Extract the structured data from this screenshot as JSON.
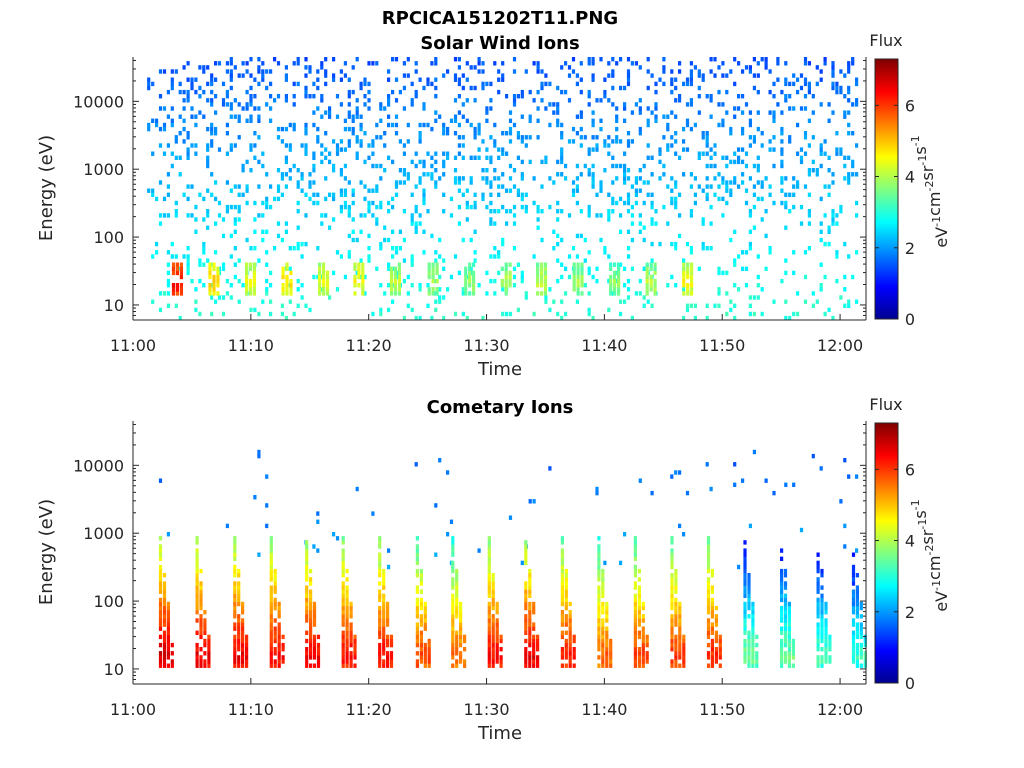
{
  "figure": {
    "title": "RPCICA151202T11.PNG"
  },
  "colorbar": {
    "label": "Flux",
    "units_base": [
      "eV",
      "cm",
      "sr",
      "s"
    ],
    "units_exp": [
      "-1",
      "-2",
      "-1",
      "-1"
    ],
    "ticks": [
      0,
      2,
      4,
      6
    ],
    "range": [
      0,
      7.3
    ],
    "colormap": "jet",
    "colors": [
      "#00008f",
      "#0000ff",
      "#0080ff",
      "#00ffff",
      "#80ff80",
      "#ffff00",
      "#ff8000",
      "#ff0000",
      "#800000"
    ]
  },
  "chart_data": [
    {
      "type": "heatmap",
      "title": "Solar Wind Ions",
      "xlabel": "Time",
      "ylabel": "Energy (eV)",
      "x_range": [
        "11:00",
        "12:02"
      ],
      "xticks": [
        "11:00",
        "11:10",
        "11:20",
        "11:30",
        "11:40",
        "11:50",
        "12:00"
      ],
      "y_scale": "log",
      "y_range": [
        6,
        45000
      ],
      "yticks": [
        10,
        100,
        1000,
        10000
      ],
      "time_span_minutes": [
        1.2,
        61.6
      ],
      "background_noise": {
        "energy_range": [
          6,
          45000
        ],
        "typical_flux": [
          1.5,
          3.0
        ],
        "coverage": "sparse"
      },
      "features": [
        {
          "label": "bursts at low energy",
          "t_min": [
            3.3,
            6.4,
            9.5,
            12.6,
            15.7,
            18.7,
            21.8,
            25.0,
            28.1,
            31.2,
            34.2,
            37.3,
            40.4,
            43.5,
            46.6
          ],
          "energy_range": [
            14,
            40
          ],
          "peak_flux": [
            6.6,
            5.2,
            4.7,
            5.0,
            4.6,
            4.8,
            4.4,
            4.2,
            4.1,
            4.3,
            4.4,
            4.2,
            4.1,
            4.3,
            4.8
          ]
        }
      ]
    },
    {
      "type": "heatmap",
      "title": "Cometary Ions",
      "xlabel": "Time",
      "ylabel": "Energy (eV)",
      "x_range": [
        "11:00",
        "12:02"
      ],
      "xticks": [
        "11:00",
        "11:10",
        "11:20",
        "11:30",
        "11:40",
        "11:50",
        "12:00"
      ],
      "y_scale": "log",
      "y_range": [
        6,
        45000
      ],
      "yticks": [
        10,
        100,
        1000,
        10000
      ],
      "time_span_minutes": [
        1.2,
        61.6
      ],
      "background_noise": {
        "energy_range": [
          300,
          20000
        ],
        "typical_flux": [
          1.5,
          2.5
        ],
        "coverage": "very sparse"
      },
      "features": [
        {
          "label": "dispersed ion bursts",
          "t_min": [
            2.2,
            5.3,
            8.5,
            11.6,
            14.6,
            17.7,
            20.8,
            24.0,
            27.0,
            30.1,
            33.2,
            36.3,
            39.4,
            42.5,
            45.6,
            48.7,
            51.8,
            54.9,
            58.0,
            61.0
          ],
          "energy_range": [
            10,
            900
          ],
          "peak_flux": [
            7.0,
            6.8,
            6.8,
            6.7,
            6.7,
            6.6,
            6.6,
            6.2,
            6.0,
            6.6,
            6.8,
            6.5,
            6.0,
            6.2,
            6.3,
            6.4,
            3.8,
            3.8,
            3.6,
            3.4
          ]
        }
      ]
    }
  ]
}
